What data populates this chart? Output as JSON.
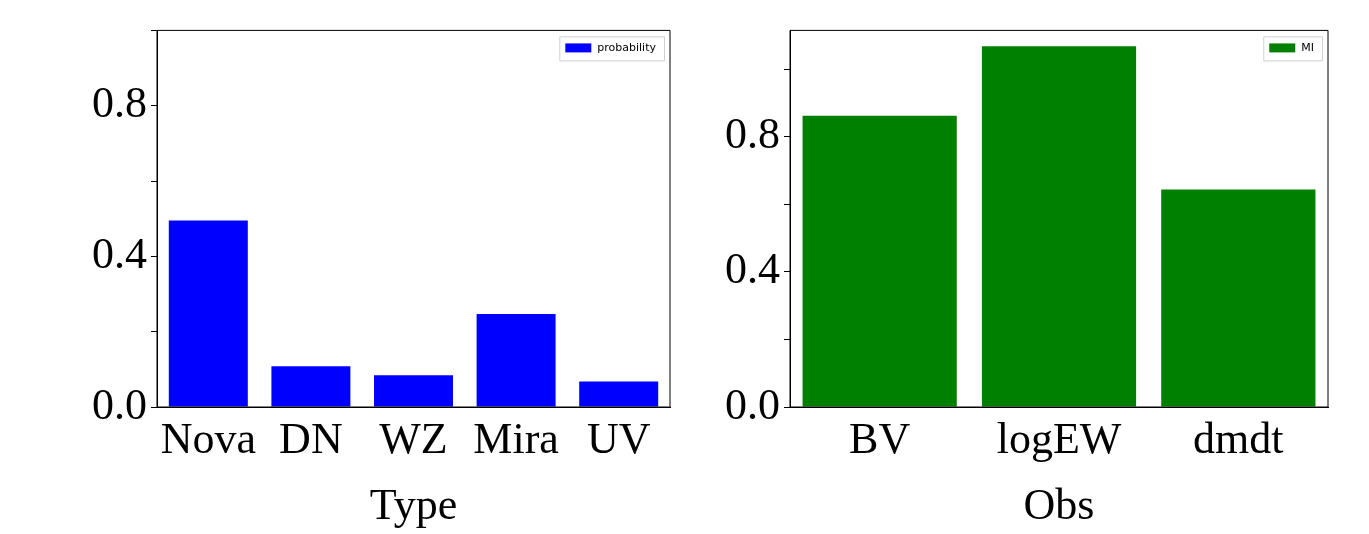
{
  "chart_data": [
    {
      "type": "bar",
      "categories": [
        "Nova",
        "DN",
        "WZ",
        "Mira",
        "UV"
      ],
      "xlabel": "Type",
      "series": [
        {
          "name": "probability",
          "color": "#0000ff",
          "values": [
            0.495,
            0.108,
            0.084,
            0.247,
            0.068
          ]
        }
      ],
      "ylim": [
        0,
        1.0
      ],
      "yticks": [
        {
          "value": 0,
          "label": "0.0"
        },
        {
          "value": 0.2,
          "label": null
        },
        {
          "value": 0.4,
          "label": "0.4"
        },
        {
          "value": 0.6,
          "label": null
        },
        {
          "value": 0.8,
          "label": "0.8"
        },
        {
          "value": 1.0,
          "label": null
        }
      ],
      "legend": "top right"
    },
    {
      "type": "bar",
      "categories": [
        "BV",
        "logEW",
        "dmdt"
      ],
      "xlabel": "Obs",
      "series": [
        {
          "name": "MI",
          "color": "#008000",
          "values": [
            0.862,
            1.068,
            0.644
          ]
        }
      ],
      "ylim": [
        0,
        1.115
      ],
      "yticks": [
        {
          "value": 0,
          "label": "0.0"
        },
        {
          "value": 0.2,
          "label": null
        },
        {
          "value": 0.4,
          "label": "0.4"
        },
        {
          "value": 0.6,
          "label": null
        },
        {
          "value": 0.8,
          "label": "0.8"
        },
        {
          "value": 1.0,
          "label": null
        }
      ],
      "legend": "top right"
    }
  ]
}
